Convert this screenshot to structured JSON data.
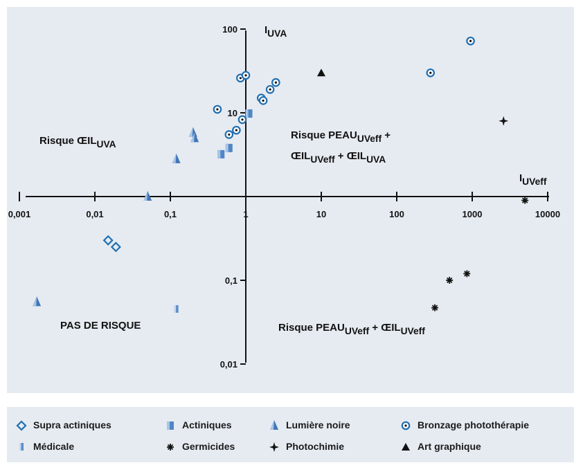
{
  "chart_data": {
    "type": "scatter",
    "x_scale": "log",
    "y_scale": "log",
    "x_axis": {
      "label_main": "I",
      "label_sub": "UVeff",
      "ticks": [
        "0,001",
        "0,01",
        "0,1",
        "1",
        "10",
        "100",
        "1000",
        "10000"
      ]
    },
    "y_axis": {
      "label_main": "I",
      "label_sub": "UVA",
      "ticks": [
        "100",
        "10",
        "1",
        "0,1",
        "0,01"
      ]
    },
    "regions": {
      "top_left": {
        "main": "Risque ŒIL",
        "sub": "UVA"
      },
      "top_right": {
        "line1_main": "Risque PEAU",
        "line1_sub": "UVeff",
        "line1_end": " +",
        "line2_a": "ŒIL",
        "line2_a_sub": "UVeff",
        "line2_mid": " + ŒIL",
        "line2_b_sub": "UVA"
      },
      "bottom_left": "PAS DE RISQUE",
      "bottom_right": {
        "main1": "Risque PEAU",
        "sub1": "UVeff",
        "mid": " + ŒIL",
        "sub2": "UVeff"
      }
    },
    "series": [
      {
        "name": "Supra actiniques",
        "marker": "diamond",
        "color": "#1f6fb2",
        "points": [
          [
            0.015,
            0.3
          ],
          [
            0.019,
            0.25
          ]
        ]
      },
      {
        "name": "Actiniques",
        "marker": "square",
        "color": "#4f86c6",
        "points": [
          [
            0.47,
            3.2
          ],
          [
            0.6,
            3.8
          ],
          [
            1.1,
            9.8
          ]
        ]
      },
      {
        "name": "Lumière noire",
        "marker": "triangle-shaded",
        "color": "#5b8fc9",
        "points": [
          [
            0.2,
            5.8
          ],
          [
            0.21,
            5.0
          ],
          [
            0.12,
            2.8
          ],
          [
            0.05,
            1.0
          ],
          [
            0.0017,
            0.055
          ]
        ]
      },
      {
        "name": "Bronzage photothérapie",
        "marker": "ring-dot",
        "color": "#1f6fb2",
        "points": [
          [
            0.42,
            11
          ],
          [
            0.85,
            26
          ],
          [
            1.0,
            28
          ],
          [
            1.6,
            15
          ],
          [
            1.7,
            14
          ],
          [
            2.1,
            19
          ],
          [
            2.5,
            23
          ],
          [
            0.9,
            8.3
          ],
          [
            0.75,
            6.2
          ],
          [
            0.6,
            5.5
          ],
          [
            280,
            30
          ],
          [
            950,
            72
          ]
        ]
      },
      {
        "name": "Médicale",
        "marker": "half-square",
        "color": "#4f86c6",
        "points": [
          [
            0.12,
            0.045
          ]
        ]
      },
      {
        "name": "Germicides",
        "marker": "asterisk",
        "color": "#111111",
        "points": [
          [
            5000,
            0.9
          ],
          [
            320,
            0.047
          ],
          [
            500,
            0.1
          ],
          [
            850,
            0.12
          ]
        ]
      },
      {
        "name": "Photochimie",
        "marker": "star4",
        "color": "#111111",
        "points": [
          [
            2600,
            8
          ]
        ]
      },
      {
        "name": "Art graphique",
        "marker": "triangle",
        "color": "#111111",
        "points": [
          [
            10,
            30
          ]
        ]
      }
    ]
  }
}
